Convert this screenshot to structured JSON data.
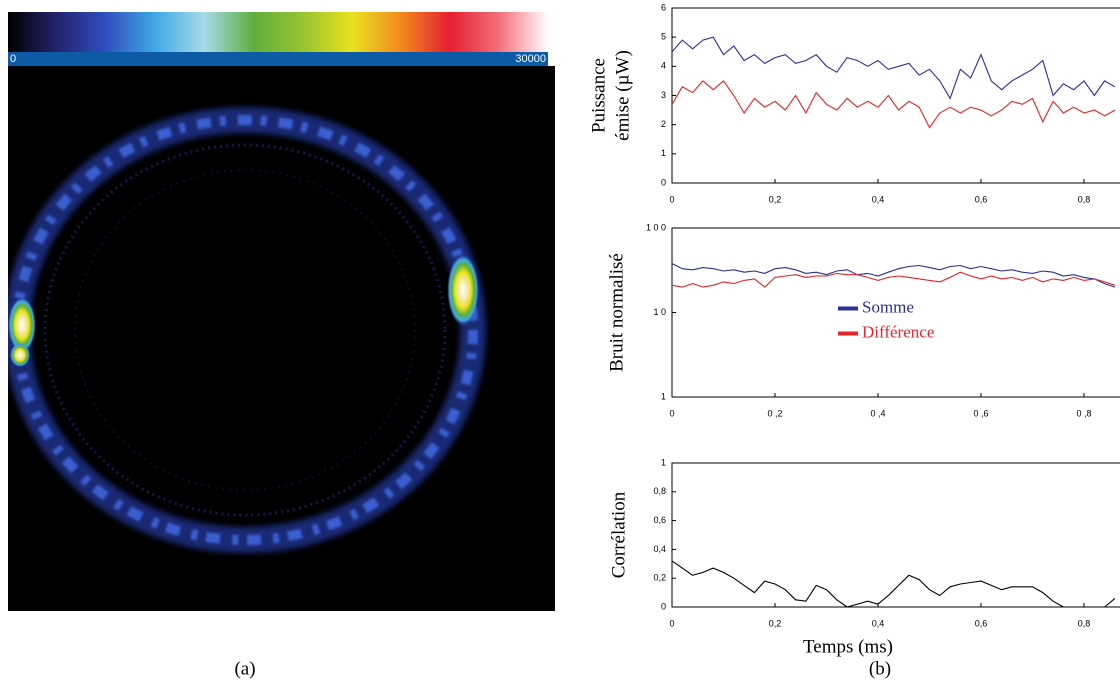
{
  "chart_data": [
    {
      "type": "image",
      "caption": "(a)",
      "colorbar": {
        "ticks": [
          0,
          30000
        ],
        "colors": [
          "#000000",
          "#24246e",
          "#2f4fbf",
          "#3fa9e6",
          "#a7dbe6",
          "#5fae3f",
          "#97c431",
          "#e8e21f",
          "#f18a1f",
          "#e51f2f",
          "#f1707a",
          "#ffffff"
        ]
      }
    },
    {
      "type": "line",
      "ylabel": [
        "Puissance",
        "émise (µW)"
      ],
      "x": [
        0,
        0.02,
        0.04,
        0.06,
        0.08,
        0.1,
        0.12,
        0.14,
        0.16,
        0.18,
        0.2,
        0.22,
        0.24,
        0.26,
        0.28,
        0.3,
        0.32,
        0.34,
        0.36,
        0.38,
        0.4,
        0.42,
        0.44,
        0.46,
        0.48,
        0.5,
        0.52,
        0.54,
        0.56,
        0.58,
        0.6,
        0.62,
        0.64,
        0.66,
        0.68,
        0.7,
        0.72,
        0.74,
        0.76,
        0.78,
        0.8,
        0.82,
        0.84,
        0.86
      ],
      "series": [
        {
          "name": "Somme",
          "color": "#2b2f8f",
          "values": [
            4.5,
            4.9,
            4.6,
            4.9,
            5.0,
            4.4,
            4.7,
            4.2,
            4.4,
            4.1,
            4.3,
            4.4,
            4.1,
            4.2,
            4.4,
            4.0,
            3.8,
            4.3,
            4.2,
            4.0,
            4.2,
            3.9,
            4.0,
            4.1,
            3.7,
            3.9,
            3.5,
            2.9,
            3.9,
            3.6,
            4.4,
            3.5,
            3.2,
            3.5,
            3.7,
            3.9,
            4.2,
            3.0,
            3.4,
            3.2,
            3.5,
            3.0,
            3.5,
            3.3
          ]
        },
        {
          "name": "Différence",
          "color": "#e3242b",
          "values": [
            2.7,
            3.3,
            3.1,
            3.5,
            3.2,
            3.5,
            3.0,
            2.4,
            2.9,
            2.6,
            2.8,
            2.5,
            3.0,
            2.4,
            3.1,
            2.7,
            2.5,
            2.9,
            2.6,
            2.8,
            2.6,
            3.0,
            2.5,
            2.8,
            2.6,
            1.9,
            2.4,
            2.6,
            2.4,
            2.6,
            2.5,
            2.3,
            2.5,
            2.8,
            2.7,
            2.9,
            2.1,
            2.8,
            2.4,
            2.6,
            2.4,
            2.5,
            2.3,
            2.5
          ]
        }
      ],
      "xlim": [
        0,
        0.87
      ],
      "ylim": [
        0,
        6
      ],
      "xticks": [
        0,
        {
          "value": 0.2,
          "label": "0,2"
        },
        {
          "value": 0.4,
          "label": "0,4"
        },
        {
          "value": 0.6,
          "label": "0,6"
        },
        {
          "value": 0.8,
          "label": "0,8"
        }
      ],
      "yticks": [
        0,
        1,
        2,
        3,
        4,
        5,
        6
      ]
    },
    {
      "type": "line",
      "ylabel": [
        "Bruit normalisé"
      ],
      "log_scale": true,
      "legend": "center",
      "x": [
        0,
        0.02,
        0.04,
        0.06,
        0.08,
        0.1,
        0.12,
        0.14,
        0.16,
        0.18,
        0.2,
        0.22,
        0.24,
        0.26,
        0.28,
        0.3,
        0.32,
        0.34,
        0.36,
        0.38,
        0.4,
        0.42,
        0.44,
        0.46,
        0.48,
        0.5,
        0.52,
        0.54,
        0.56,
        0.58,
        0.6,
        0.62,
        0.64,
        0.66,
        0.68,
        0.7,
        0.72,
        0.74,
        0.76,
        0.78,
        0.8,
        0.82,
        0.84,
        0.86
      ],
      "series": [
        {
          "name": "Somme",
          "color": "#2b2f8f",
          "values": [
            38,
            33,
            32,
            34,
            33,
            31,
            32,
            30,
            31,
            29,
            33,
            34,
            32,
            29,
            30,
            28,
            31,
            32,
            28,
            29,
            27,
            30,
            33,
            35,
            36,
            34,
            32,
            35,
            36,
            33,
            35,
            33,
            31,
            32,
            30,
            29,
            31,
            30,
            27,
            28,
            26,
            25,
            22,
            20
          ]
        },
        {
          "name": "Différence",
          "color": "#e3242b",
          "values": [
            21,
            20,
            22,
            20,
            21,
            23,
            22,
            24,
            25,
            20,
            26,
            27,
            28,
            26,
            27,
            27,
            29,
            28,
            28,
            26,
            24,
            26,
            27,
            26,
            25,
            24,
            23,
            26,
            30,
            27,
            25,
            27,
            25,
            26,
            24,
            26,
            23,
            25,
            24,
            26,
            24,
            25,
            23,
            21
          ]
        }
      ],
      "xlim": [
        0,
        0.87
      ],
      "ylim": [
        1,
        100
      ],
      "xticks": [
        0,
        {
          "value": 0.2,
          "label": "0 ,2"
        },
        {
          "value": 0.4,
          "label": "0 ,4"
        },
        {
          "value": 0.6,
          "label": "0 ,6"
        },
        {
          "value": 0.8,
          "label": "0 ,8"
        }
      ],
      "yticks": [
        1,
        {
          "value": 10,
          "label": "1 0"
        },
        {
          "value": 100,
          "label": "1 0 0"
        }
      ]
    },
    {
      "type": "line",
      "ylabel": [
        "Corrélation"
      ],
      "xlabel": "Temps (ms)",
      "caption": "(b)",
      "x": [
        0,
        0.02,
        0.04,
        0.06,
        0.08,
        0.1,
        0.12,
        0.14,
        0.16,
        0.18,
        0.2,
        0.22,
        0.24,
        0.26,
        0.28,
        0.3,
        0.32,
        0.34,
        0.36,
        0.38,
        0.4,
        0.42,
        0.44,
        0.46,
        0.48,
        0.5,
        0.52,
        0.54,
        0.56,
        0.58,
        0.6,
        0.62,
        0.64,
        0.66,
        0.68,
        0.7,
        0.72,
        0.74,
        0.76,
        0.78,
        0.8,
        0.82,
        0.84,
        0.86
      ],
      "series": [
        {
          "color": "#000000",
          "values": [
            0.32,
            0.27,
            0.22,
            0.24,
            0.27,
            0.24,
            0.2,
            0.15,
            0.1,
            0.18,
            0.16,
            0.12,
            0.05,
            0.04,
            0.15,
            0.12,
            0.05,
            0.0,
            0.02,
            0.04,
            0.02,
            0.08,
            0.15,
            0.22,
            0.19,
            0.12,
            0.08,
            0.14,
            0.16,
            0.17,
            0.18,
            0.15,
            0.12,
            0.14,
            0.14,
            0.14,
            0.1,
            0.04,
            0.0,
            null,
            null,
            null,
            0.0,
            0.06
          ]
        }
      ],
      "xlim": [
        0,
        0.87
      ],
      "ylim": [
        0,
        1
      ],
      "xticks": [
        0,
        {
          "value": 0.2,
          "label": "0,2"
        },
        {
          "value": 0.4,
          "label": "0,4"
        },
        {
          "value": 0.6,
          "label": "0,6"
        },
        {
          "value": 0.8,
          "label": "0,8"
        }
      ],
      "yticks": [
        0,
        {
          "value": 0.2,
          "label": "0,2"
        },
        {
          "value": 0.4,
          "label": "0,4"
        },
        {
          "value": 0.6,
          "label": "0,6"
        },
        {
          "value": 0.8,
          "label": "0,8"
        },
        1
      ]
    }
  ]
}
